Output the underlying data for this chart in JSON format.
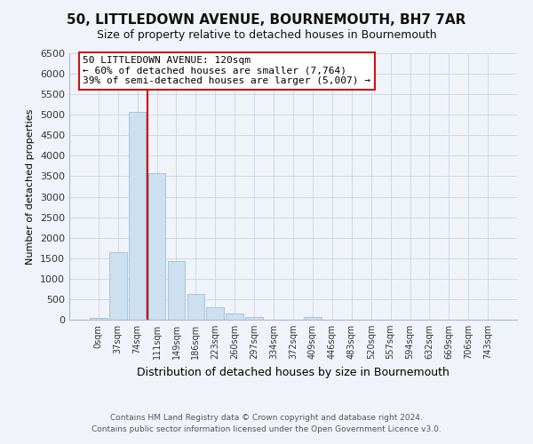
{
  "title": "50, LITTLEDOWN AVENUE, BOURNEMOUTH, BH7 7AR",
  "subtitle": "Size of property relative to detached houses in Bournemouth",
  "xlabel": "Distribution of detached houses by size in Bournemouth",
  "ylabel": "Number of detached properties",
  "footer_line1": "Contains HM Land Registry data © Crown copyright and database right 2024.",
  "footer_line2": "Contains public sector information licensed under the Open Government Licence v3.0.",
  "bar_labels": [
    "0sqm",
    "37sqm",
    "74sqm",
    "111sqm",
    "149sqm",
    "186sqm",
    "223sqm",
    "260sqm",
    "297sqm",
    "334sqm",
    "372sqm",
    "409sqm",
    "446sqm",
    "483sqm",
    "520sqm",
    "557sqm",
    "594sqm",
    "632sqm",
    "669sqm",
    "706sqm",
    "743sqm"
  ],
  "bar_values": [
    50,
    1650,
    5080,
    3580,
    1430,
    620,
    305,
    150,
    75,
    0,
    0,
    55,
    0,
    0,
    0,
    0,
    0,
    0,
    0,
    0,
    0
  ],
  "bar_color": "#cce0f0",
  "bar_edge_color": "#9bbfd8",
  "vline_color": "#cc0000",
  "vline_x_idx": 2.5,
  "ylim": [
    0,
    6500
  ],
  "yticks": [
    0,
    500,
    1000,
    1500,
    2000,
    2500,
    3000,
    3500,
    4000,
    4500,
    5000,
    5500,
    6000,
    6500
  ],
  "annotation_title": "50 LITTLEDOWN AVENUE: 120sqm",
  "annotation_line2": "← 60% of detached houses are smaller (7,764)",
  "annotation_line3": "39% of semi-detached houses are larger (5,007) →",
  "bg_color": "#f0f4fa",
  "grid_color": "#c8d4e8",
  "spine_color": "#b0b8c8"
}
